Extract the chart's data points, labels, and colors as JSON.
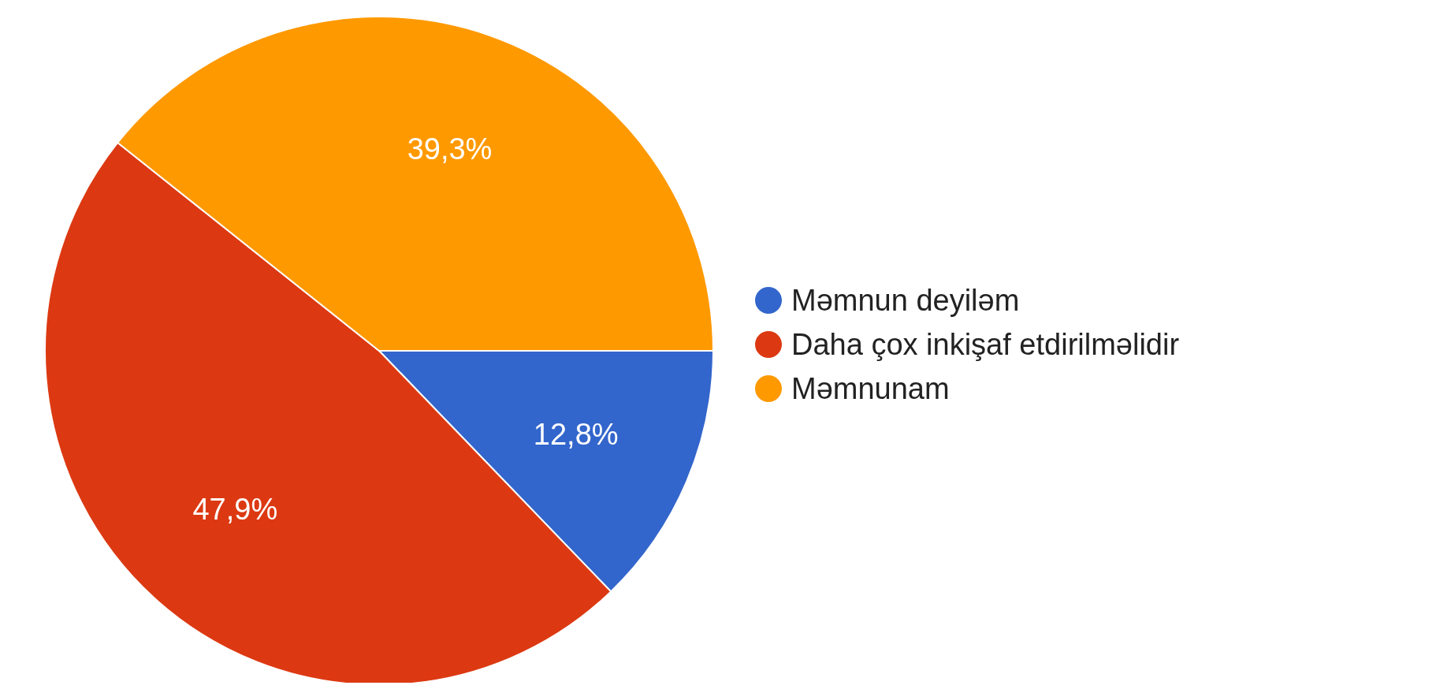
{
  "chart_data": {
    "type": "pie",
    "categories": [
      "Məmnun deyiləm",
      "Daha çox inkişaf etdirilməlidir",
      "Məmnunam"
    ],
    "values": [
      12.8,
      47.9,
      39.3
    ],
    "value_labels": [
      "12,8%",
      "47,9%",
      "39,3%"
    ],
    "colors": [
      "#3366cc",
      "#dc3912",
      "#ff9900"
    ],
    "legend": "right"
  }
}
